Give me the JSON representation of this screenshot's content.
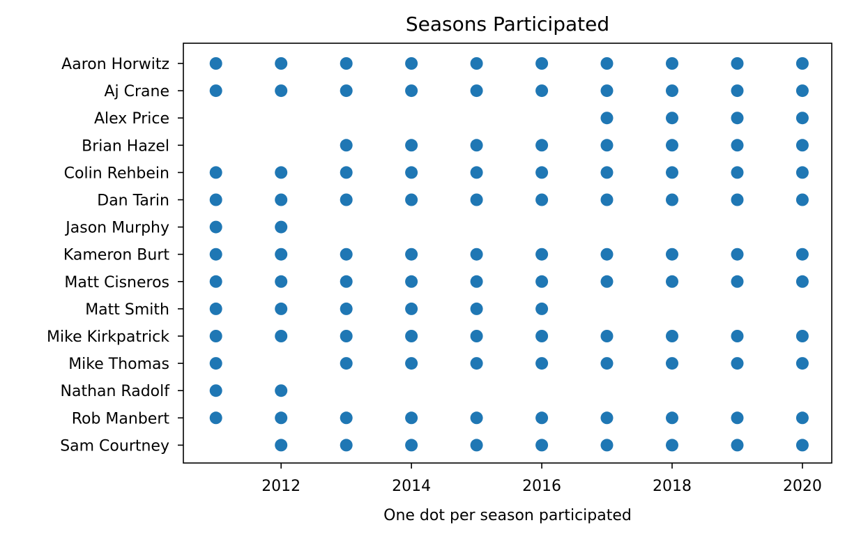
{
  "chart_data": {
    "type": "scatter",
    "title": "Seasons Participated",
    "xlabel": "One dot per season participated",
    "ylabel": "",
    "xlim": [
      2010.5,
      2020.45
    ],
    "xticks": [
      2012,
      2014,
      2016,
      2018,
      2020
    ],
    "grid": false,
    "marker_color": "#1f77b4",
    "categories": [
      "Aaron Horwitz",
      "Aj Crane",
      "Alex Price",
      "Brian Hazel",
      "Colin Rehbein",
      "Dan Tarin",
      "Jason Murphy",
      "Kameron Burt",
      "Matt Cisneros",
      "Matt Smith",
      "Mike Kirkpatrick",
      "Mike Thomas",
      "Nathan Radolf",
      "Rob Manbert",
      "Sam Courtney"
    ],
    "seasons": {
      "Aaron Horwitz": [
        2011,
        2012,
        2013,
        2014,
        2015,
        2016,
        2017,
        2018,
        2019,
        2020
      ],
      "Aj Crane": [
        2011,
        2012,
        2013,
        2014,
        2015,
        2016,
        2017,
        2018,
        2019,
        2020
      ],
      "Alex Price": [
        2017,
        2018,
        2019,
        2020
      ],
      "Brian Hazel": [
        2013,
        2014,
        2015,
        2016,
        2017,
        2018,
        2019,
        2020
      ],
      "Colin Rehbein": [
        2011,
        2012,
        2013,
        2014,
        2015,
        2016,
        2017,
        2018,
        2019,
        2020
      ],
      "Dan Tarin": [
        2011,
        2012,
        2013,
        2014,
        2015,
        2016,
        2017,
        2018,
        2019,
        2020
      ],
      "Jason Murphy": [
        2011,
        2012
      ],
      "Kameron Burt": [
        2011,
        2012,
        2013,
        2014,
        2015,
        2016,
        2017,
        2018,
        2019,
        2020
      ],
      "Matt Cisneros": [
        2011,
        2012,
        2013,
        2014,
        2015,
        2016,
        2017,
        2018,
        2019,
        2020
      ],
      "Matt Smith": [
        2011,
        2012,
        2013,
        2014,
        2015,
        2016
      ],
      "Mike Kirkpatrick": [
        2011,
        2012,
        2013,
        2014,
        2015,
        2016,
        2017,
        2018,
        2019,
        2020
      ],
      "Mike Thomas": [
        2011,
        2013,
        2014,
        2015,
        2016,
        2017,
        2018,
        2019,
        2020
      ],
      "Nathan Radolf": [
        2011,
        2012
      ],
      "Rob Manbert": [
        2011,
        2012,
        2013,
        2014,
        2015,
        2016,
        2017,
        2018,
        2019,
        2020
      ],
      "Sam Courtney": [
        2012,
        2013,
        2014,
        2015,
        2016,
        2017,
        2018,
        2019,
        2020
      ]
    }
  }
}
